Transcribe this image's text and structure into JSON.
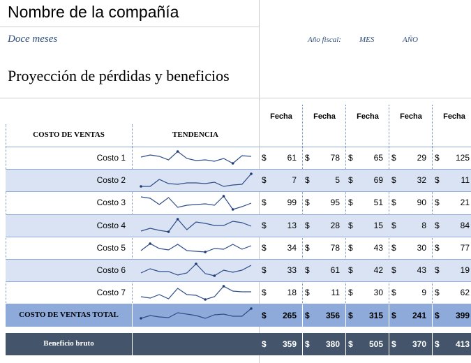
{
  "company_name": "Nombre de la compañía",
  "period": "Doce meses",
  "report_title": "Proyección de pérdidas y beneficios",
  "fiscal": {
    "label": "Año fiscal:",
    "month": "MES",
    "year": "AÑO"
  },
  "columns": [
    "Fecha",
    "Fecha",
    "Fecha",
    "Fecha",
    "Fecha"
  ],
  "headers": {
    "cost_of_sales": "COSTO DE VENTAS",
    "trend": "TENDENCIA"
  },
  "currency_symbol": "$",
  "rows": [
    {
      "label": "Costo 1",
      "values": [
        "61",
        "78",
        "65",
        "29",
        "125"
      ]
    },
    {
      "label": "Costo 2",
      "values": [
        "7",
        "5",
        "69",
        "32",
        "11"
      ]
    },
    {
      "label": "Costo 3",
      "values": [
        "99",
        "95",
        "51",
        "90",
        "21"
      ]
    },
    {
      "label": "Costo 4",
      "values": [
        "13",
        "28",
        "15",
        "8",
        "84"
      ]
    },
    {
      "label": "Costo 5",
      "values": [
        "34",
        "78",
        "43",
        "30",
        "77"
      ]
    },
    {
      "label": "Costo 6",
      "values": [
        "33",
        "61",
        "42",
        "43",
        "19"
      ]
    },
    {
      "label": "Costo 7",
      "values": [
        "18",
        "11",
        "30",
        "9",
        "62"
      ]
    }
  ],
  "total": {
    "label": "COSTO DE VENTAS TOTAL",
    "values": [
      "265",
      "356",
      "315",
      "241",
      "399"
    ]
  },
  "gross_profit": {
    "label": "Beneficio bruto",
    "values": [
      "359",
      "380",
      "505",
      "370",
      "413"
    ]
  },
  "sparklines": [
    [
      0.55,
      0.7,
      0.6,
      0.35,
      0.95,
      0.45,
      0.3,
      0.35,
      0.25,
      0.45,
      0.1,
      0.65,
      0.6
    ],
    [
      0.05,
      0.05,
      0.55,
      0.25,
      0.2,
      0.3,
      0.3,
      0.25,
      0.35,
      0.05,
      0.15,
      0.2,
      0.95
    ],
    [
      0.9,
      0.8,
      0.35,
      0.85,
      0.15,
      0.3,
      0.35,
      0.4,
      0.3,
      0.95,
      0.0,
      0.2,
      0.45
    ],
    [
      0.1,
      0.3,
      0.15,
      0.05,
      0.95,
      0.2,
      0.75,
      0.65,
      0.5,
      0.5,
      0.8,
      0.7,
      0.45
    ],
    [
      0.3,
      0.8,
      0.45,
      0.35,
      0.75,
      0.3,
      0.25,
      0.2,
      0.45,
      0.4,
      0.75,
      0.4,
      0.65
    ],
    [
      0.3,
      0.6,
      0.4,
      0.4,
      0.15,
      0.3,
      0.95,
      0.25,
      0.1,
      0.5,
      0.35,
      0.5,
      0.85
    ],
    [
      0.2,
      0.1,
      0.35,
      0.05,
      0.8,
      0.35,
      0.3,
      0.0,
      0.2,
      0.95,
      0.6,
      0.55,
      0.55
    ],
    [
      0.25,
      0.45,
      0.35,
      0.3,
      0.65,
      0.55,
      0.45,
      0.25,
      0.5,
      0.55,
      0.4,
      0.4,
      0.95
    ]
  ]
}
